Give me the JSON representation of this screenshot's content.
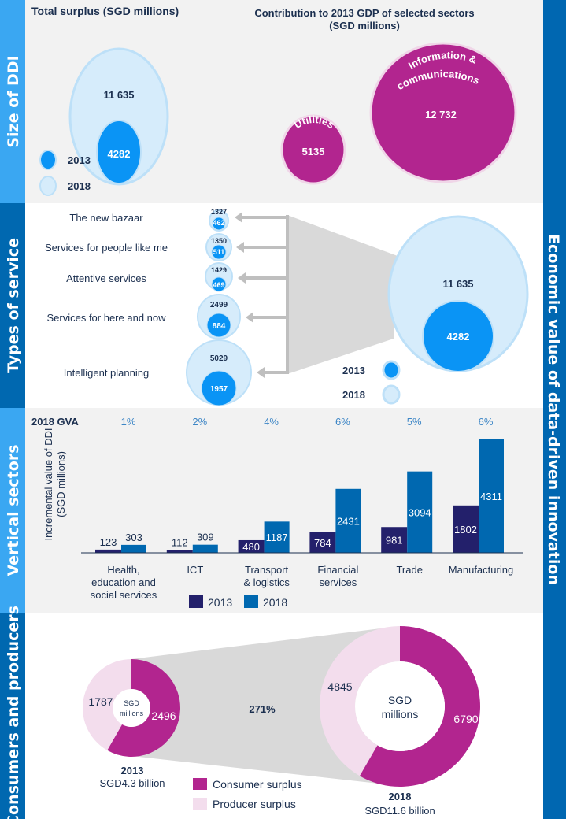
{
  "side_labels": {
    "size": "Size of DDI",
    "types": "Types of service",
    "vertical": "Vertical sectors",
    "consumers": "Consumers and producers",
    "right": "Economic value of data-driven innovation"
  },
  "colors": {
    "band_light": "#3aa7f2",
    "band_dark": "#0068b0",
    "panel_gray": "#f2f2f2",
    "bubble_2013": "#0a94f5",
    "bubble_2018": "#d6ecfb",
    "bubble_2018_edge": "#bde0f8",
    "sector_magenta": "#b2258f",
    "bar_2013": "#23206b",
    "bar_2018": "#0068b0",
    "gva_text": "#3d86c6",
    "consumer": "#b2258f",
    "producer": "#f3dded",
    "funnel_gray": "#d9d9d9",
    "text_navy": "#1b2f4f"
  },
  "chart_data": [
    {
      "type": "bubble",
      "title": "Total surplus (SGD millions)",
      "series": [
        {
          "name": "2013",
          "value": 4282,
          "label": "4282"
        },
        {
          "name": "2018",
          "value": 11635,
          "label": "11 635"
        }
      ]
    },
    {
      "type": "bubble",
      "title_lines": [
        "Contribution to 2013 GDP of selected sectors",
        "(SGD millions)"
      ],
      "items": [
        {
          "name": "Utilities",
          "value": 5135,
          "label": "5135"
        },
        {
          "name": "Information & communications",
          "name_lines": [
            "Information &",
            "communications"
          ],
          "value": 12732,
          "label": "12 732"
        }
      ]
    },
    {
      "type": "bubble",
      "categories": [
        "The new bazaar",
        "Services for people like me",
        "Attentive services",
        "Services for here and now",
        "Intelligent planning"
      ],
      "series": [
        {
          "name": "2013",
          "values": [
            462,
            511,
            469,
            884,
            1957
          ]
        },
        {
          "name": "2018",
          "values": [
            1327,
            1350,
            1429,
            2499,
            5029
          ]
        }
      ],
      "total": {
        "2013": "4282",
        "2018": "11 635"
      }
    },
    {
      "type": "bar",
      "header_label": "2018 GVA",
      "gva": [
        "1%",
        "2%",
        "4%",
        "6%",
        "5%",
        "6%"
      ],
      "categories": [
        "Health, education and social services",
        "ICT",
        "Transport & logistics",
        "Financial services",
        "Trade",
        "Manufacturing"
      ],
      "category_lines": [
        [
          "Health,",
          "education and",
          "social services"
        ],
        [
          "ICT"
        ],
        [
          "Transport",
          "& logistics"
        ],
        [
          "Financial",
          "services"
        ],
        [
          "Trade"
        ],
        [
          "Manufacturing"
        ]
      ],
      "series": [
        {
          "name": "2013",
          "values": [
            123,
            112,
            480,
            784,
            981,
            1802
          ]
        },
        {
          "name": "2018",
          "values": [
            303,
            309,
            1187,
            2431,
            3094,
            4311
          ]
        }
      ],
      "ylabel_lines": [
        "Incremental value of DDI",
        "(SGD millions)"
      ],
      "ylim": [
        0,
        4311
      ],
      "legend": "bottom"
    },
    {
      "type": "pie",
      "categories": [
        "Consumer surplus",
        "Producer surplus"
      ],
      "growth_label": "271%",
      "donuts": [
        {
          "year": "2013",
          "total_label": "SGD4.3 billion",
          "center_lines": [
            "SGD",
            "millions"
          ],
          "values": [
            2496,
            1787
          ]
        },
        {
          "year": "2018",
          "total_label": "SGD11.6 billion",
          "center_lines": [
            "SGD",
            "millions"
          ],
          "values": [
            6790,
            4845
          ]
        }
      ]
    }
  ]
}
